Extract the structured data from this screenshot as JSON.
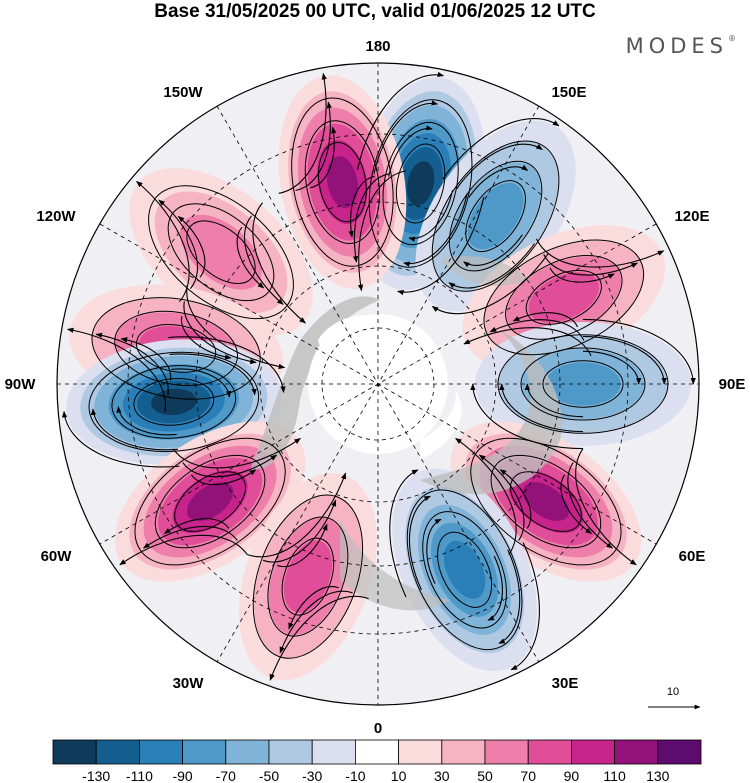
{
  "title": "Base 31/05/2025 00 UTC, valid 01/06/2025 12 UTC",
  "brand": "MODES",
  "brand_mark": "®",
  "lon_labels": {
    "top": "180",
    "top_left": "150W",
    "top_right": "150E",
    "upper_left": "120W",
    "upper_right": "120E",
    "left": "90W",
    "right": "90E",
    "lower_left": "60W",
    "lower_right": "60E",
    "bottom_left": "30W",
    "bottom_right": "30E",
    "bottom": "0"
  },
  "vector_reference": "10",
  "colorbar": {
    "ticks": [
      "-130",
      "-110",
      "-90",
      "-70",
      "-50",
      "-30",
      "-10",
      "10",
      "30",
      "50",
      "70",
      "90",
      "110",
      "130"
    ],
    "colors": [
      "#0e3b5c",
      "#145f8f",
      "#2a7fb8",
      "#4f99c9",
      "#80b3d8",
      "#b0c9e3",
      "#dcdfef",
      "#ffffff",
      "#fadcdc",
      "#f5b3c4",
      "#ee7fab",
      "#e04d98",
      "#c7238a",
      "#93127a",
      "#5c0b6e"
    ]
  },
  "map": {
    "projection": "north-polar-stereographic",
    "anomaly_centers": [
      {
        "lon": 168,
        "value": -130
      },
      {
        "lon": -170,
        "value": 110
      },
      {
        "lon": 145,
        "value": -70
      },
      {
        "lon": -130,
        "value": 50
      },
      {
        "lon": 115,
        "value": 70
      },
      {
        "lon": -100,
        "value": 70
      },
      {
        "lon": -85,
        "value": -130
      },
      {
        "lon": 90,
        "value": -70
      },
      {
        "lon": -55,
        "value": 110
      },
      {
        "lon": 55,
        "value": 110
      },
      {
        "lon": -20,
        "value": 70
      },
      {
        "lon": 25,
        "value": -90
      }
    ]
  }
}
